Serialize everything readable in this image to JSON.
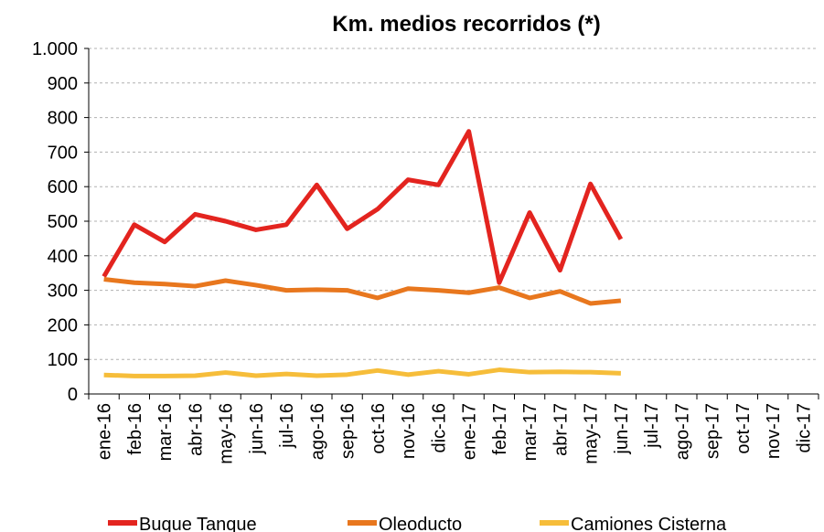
{
  "chart_data": {
    "type": "line",
    "title": "Km. medios recorridos (*)",
    "categories": [
      "ene-16",
      "feb-16",
      "mar-16",
      "abr-16",
      "may-16",
      "jun-16",
      "jul-16",
      "ago-16",
      "sep-16",
      "oct-16",
      "nov-16",
      "dic-16",
      "ene-17",
      "feb-17",
      "mar-17",
      "abr-17",
      "may-17",
      "jun-17",
      "jul-17",
      "ago-17",
      "sep-17",
      "oct-17",
      "nov-17",
      "dic-17"
    ],
    "series": [
      {
        "name": "Buque Tanque",
        "color": "#e3241f",
        "values": [
          340,
          490,
          440,
          520,
          500,
          475,
          490,
          605,
          478,
          535,
          620,
          605,
          760,
          322,
          525,
          358,
          608,
          448,
          null,
          null,
          null,
          null,
          null,
          null
        ]
      },
      {
        "name": "Oleoducto",
        "color": "#e8771e",
        "values": [
          332,
          322,
          318,
          312,
          328,
          315,
          300,
          302,
          300,
          278,
          305,
          300,
          293,
          308,
          278,
          297,
          262,
          270,
          null,
          null,
          null,
          null,
          null,
          null
        ]
      },
      {
        "name": "Camiones Cisterna",
        "color": "#f6bd3a",
        "values": [
          55,
          52,
          52,
          53,
          62,
          53,
          58,
          53,
          56,
          68,
          56,
          66,
          57,
          70,
          63,
          64,
          63,
          60,
          null,
          null,
          null,
          null,
          null,
          null
        ]
      }
    ],
    "ylim": [
      0,
      1000
    ],
    "yticks": [
      0,
      100,
      200,
      300,
      400,
      500,
      600,
      700,
      800,
      900,
      {
        "value": 1000,
        "label": "1.000"
      }
    ],
    "grid": true,
    "legend": "bottom"
  }
}
